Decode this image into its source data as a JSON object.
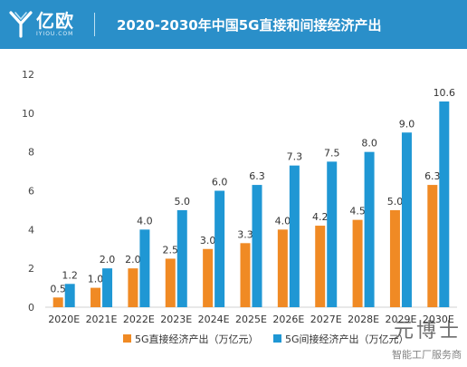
{
  "brand": {
    "name_cn": "亿欧",
    "name_en": "IYIOU.COM"
  },
  "chart_data": {
    "type": "bar",
    "title": "2020-2030年中国5G直接和间接经济产出",
    "categories": [
      "2020E",
      "2021E",
      "2022E",
      "2023E",
      "2024E",
      "2025E",
      "2026E",
      "2027E",
      "2028E",
      "2029E",
      "2030E"
    ],
    "series": [
      {
        "name": "5G直接经济产出（万亿元）",
        "color": "#f08a24",
        "values": [
          0.5,
          1.0,
          2.0,
          2.5,
          3.0,
          3.3,
          4.0,
          4.2,
          4.5,
          5.0,
          6.3
        ]
      },
      {
        "name": "5G间接经济产出（万亿元）",
        "color": "#1f97d4",
        "values": [
          1.2,
          2.0,
          4.0,
          5.0,
          6.0,
          6.3,
          7.3,
          7.5,
          8.0,
          9.0,
          10.6
        ]
      }
    ],
    "data_labels": [
      [
        "0.5",
        "1.0",
        "2.0",
        "2.5",
        "3.0",
        "3.3",
        "4.0",
        "4.2",
        "4.5",
        "5.0",
        "6.3"
      ],
      [
        "1.2",
        "2.0",
        "4.0",
        "5.0",
        "6.0",
        "6.3",
        "7.3",
        "7.5",
        "8.0",
        "9.0",
        "10.6"
      ]
    ],
    "yticks": [
      "0",
      "2",
      "4",
      "6",
      "8",
      "10",
      "12"
    ],
    "ylim": [
      0,
      12
    ],
    "grid": false,
    "legend_position": "bottom"
  },
  "watermark": {
    "text": "元博士",
    "subtext": "智能工厂服务商"
  }
}
